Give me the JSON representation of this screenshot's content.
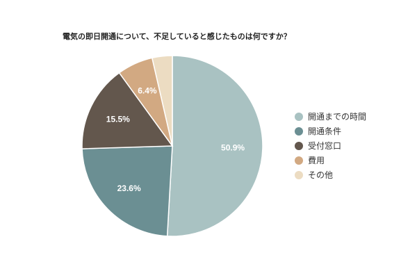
{
  "chart_data": {
    "type": "pie",
    "title": "電気の即日開通について、不足していると感じたものは何ですか？",
    "categories": [
      "開通までの時間",
      "開通条件",
      "受付窓口",
      "費用",
      "その他"
    ],
    "values": [
      50.9,
      23.6,
      15.5,
      6.4,
      3.6
    ],
    "value_labels": [
      "50.9%",
      "23.6%",
      "15.5%",
      "6.4%",
      ""
    ],
    "colors": [
      "#a9c2c2",
      "#6b8f93",
      "#63574d",
      "#d2a982",
      "#ecdcc2"
    ],
    "legend_position": "right"
  }
}
